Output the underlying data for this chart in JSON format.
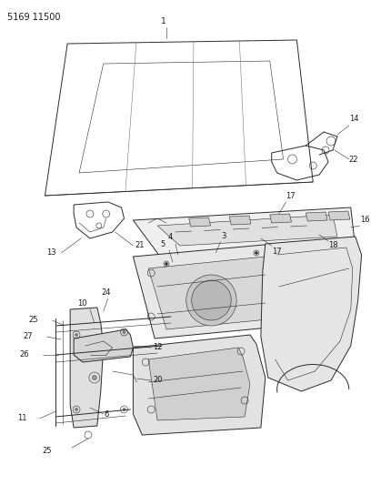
{
  "bg_color": "#ffffff",
  "line_color": "#2a2a2a",
  "label_color": "#1a1a1a",
  "fig_width": 4.08,
  "fig_height": 5.33,
  "dpi": 100,
  "header_text": "5169 11500",
  "header_fontsize": 7.0
}
